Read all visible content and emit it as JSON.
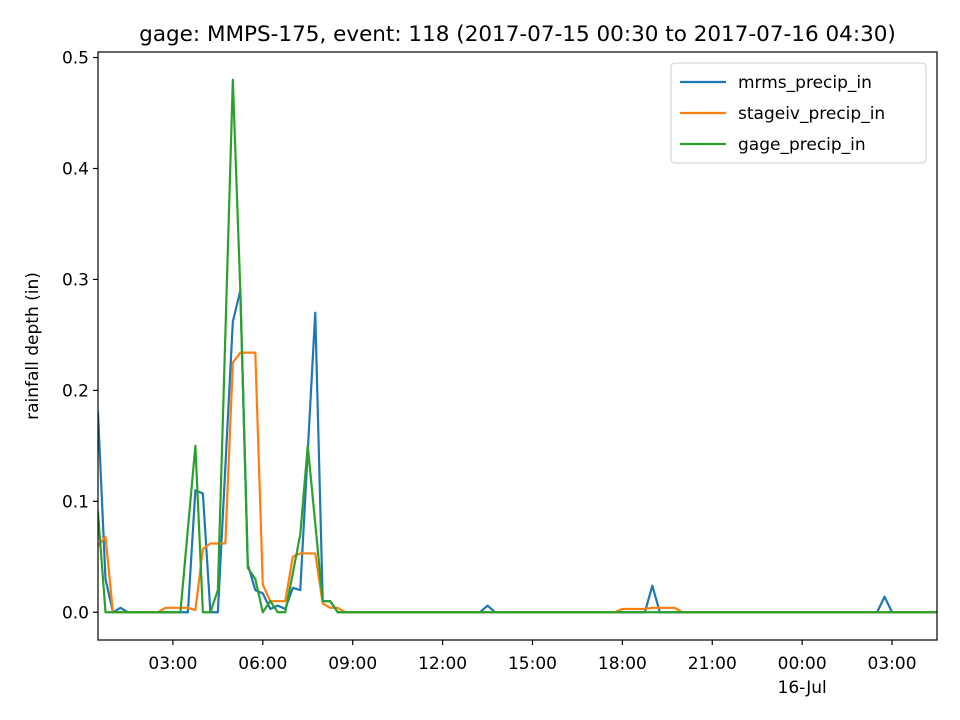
{
  "chart_data": {
    "type": "line",
    "title": "gage: MMPS-175, event: 118 (2017-07-15 00:30 to 2017-07-16 04:30)",
    "xlabel": "",
    "ylabel": "rainfall depth (in)",
    "xlim": [
      "2017-07-15 00:30",
      "2017-07-16 04:30"
    ],
    "ylim": [
      -0.025,
      0.505
    ],
    "x_ticks": [
      {
        "value": "2017-07-15 03:00",
        "label": "03:00",
        "sublabel": ""
      },
      {
        "value": "2017-07-15 06:00",
        "label": "06:00",
        "sublabel": ""
      },
      {
        "value": "2017-07-15 09:00",
        "label": "09:00",
        "sublabel": ""
      },
      {
        "value": "2017-07-15 12:00",
        "label": "12:00",
        "sublabel": ""
      },
      {
        "value": "2017-07-15 15:00",
        "label": "15:00",
        "sublabel": ""
      },
      {
        "value": "2017-07-15 18:00",
        "label": "18:00",
        "sublabel": ""
      },
      {
        "value": "2017-07-15 21:00",
        "label": "21:00",
        "sublabel": ""
      },
      {
        "value": "2017-07-16 00:00",
        "label": "00:00",
        "sublabel": "16-Jul"
      },
      {
        "value": "2017-07-16 03:00",
        "label": "03:00",
        "sublabel": ""
      }
    ],
    "y_ticks": [
      {
        "value": 0.0,
        "label": "0.0"
      },
      {
        "value": 0.1,
        "label": "0.1"
      },
      {
        "value": 0.2,
        "label": "0.2"
      },
      {
        "value": 0.3,
        "label": "0.3"
      },
      {
        "value": 0.4,
        "label": "0.4"
      },
      {
        "value": 0.5,
        "label": "0.5"
      }
    ],
    "grid": false,
    "legend_position": "top-right",
    "series": [
      {
        "name": "mrms_precip_in",
        "color": "#1f77b4",
        "points": [
          [
            "2017-07-15 00:30",
            0.18
          ],
          [
            "2017-07-15 00:45",
            0.03
          ],
          [
            "2017-07-15 01:00",
            0.0
          ],
          [
            "2017-07-15 01:15",
            0.004
          ],
          [
            "2017-07-15 01:30",
            0.0
          ],
          [
            "2017-07-15 03:30",
            0.0
          ],
          [
            "2017-07-15 03:45",
            0.11
          ],
          [
            "2017-07-15 04:00",
            0.107
          ],
          [
            "2017-07-15 04:15",
            0.0
          ],
          [
            "2017-07-15 04:30",
            0.0
          ],
          [
            "2017-07-15 05:00",
            0.262
          ],
          [
            "2017-07-15 05:15",
            0.29
          ],
          [
            "2017-07-15 05:30",
            0.043
          ],
          [
            "2017-07-15 05:45",
            0.02
          ],
          [
            "2017-07-15 06:00",
            0.017
          ],
          [
            "2017-07-15 06:15",
            0.003
          ],
          [
            "2017-07-15 06:30",
            0.006
          ],
          [
            "2017-07-15 06:45",
            0.003
          ],
          [
            "2017-07-15 07:00",
            0.022
          ],
          [
            "2017-07-15 07:15",
            0.02
          ],
          [
            "2017-07-15 07:45",
            0.27
          ],
          [
            "2017-07-15 08:00",
            0.01
          ],
          [
            "2017-07-15 08:15",
            0.01
          ],
          [
            "2017-07-15 08:30",
            0.0
          ],
          [
            "2017-07-15 13:15",
            0.0
          ],
          [
            "2017-07-15 13:30",
            0.006
          ],
          [
            "2017-07-15 13:45",
            0.0
          ],
          [
            "2017-07-15 18:45",
            0.0
          ],
          [
            "2017-07-15 19:00",
            0.024
          ],
          [
            "2017-07-15 19:15",
            0.0
          ],
          [
            "2017-07-16 02:30",
            0.0
          ],
          [
            "2017-07-16 02:45",
            0.014
          ],
          [
            "2017-07-16 03:00",
            0.0
          ],
          [
            "2017-07-16 04:30",
            0.0
          ]
        ]
      },
      {
        "name": "stageiv_precip_in",
        "color": "#ff7f0e",
        "points": [
          [
            "2017-07-15 00:30",
            0.06
          ],
          [
            "2017-07-15 00:45",
            0.068
          ],
          [
            "2017-07-15 01:00",
            0.0
          ],
          [
            "2017-07-15 02:30",
            0.0
          ],
          [
            "2017-07-15 02:45",
            0.004
          ],
          [
            "2017-07-15 03:30",
            0.004
          ],
          [
            "2017-07-15 03:45",
            0.002
          ],
          [
            "2017-07-15 04:00",
            0.057
          ],
          [
            "2017-07-15 04:15",
            0.062
          ],
          [
            "2017-07-15 04:45",
            0.062
          ],
          [
            "2017-07-15 05:00",
            0.225
          ],
          [
            "2017-07-15 05:15",
            0.234
          ],
          [
            "2017-07-15 05:45",
            0.234
          ],
          [
            "2017-07-15 06:00",
            0.025
          ],
          [
            "2017-07-15 06:15",
            0.01
          ],
          [
            "2017-07-15 06:45",
            0.01
          ],
          [
            "2017-07-15 07:00",
            0.05
          ],
          [
            "2017-07-15 07:15",
            0.053
          ],
          [
            "2017-07-15 07:45",
            0.053
          ],
          [
            "2017-07-15 08:00",
            0.008
          ],
          [
            "2017-07-15 08:15",
            0.004
          ],
          [
            "2017-07-15 08:30",
            0.004
          ],
          [
            "2017-07-15 08:45",
            0.0
          ],
          [
            "2017-07-15 17:45",
            0.0
          ],
          [
            "2017-07-15 18:00",
            0.003
          ],
          [
            "2017-07-15 18:45",
            0.003
          ],
          [
            "2017-07-15 19:00",
            0.004
          ],
          [
            "2017-07-15 19:45",
            0.004
          ],
          [
            "2017-07-15 20:00",
            0.0
          ],
          [
            "2017-07-16 04:30",
            0.0
          ]
        ]
      },
      {
        "name": "gage_precip_in",
        "color": "#2ca02c",
        "points": [
          [
            "2017-07-15 00:30",
            0.09
          ],
          [
            "2017-07-15 00:45",
            0.0
          ],
          [
            "2017-07-15 03:15",
            0.0
          ],
          [
            "2017-07-15 03:45",
            0.15
          ],
          [
            "2017-07-15 04:00",
            0.0
          ],
          [
            "2017-07-15 04:15",
            0.0
          ],
          [
            "2017-07-15 04:30",
            0.02
          ],
          [
            "2017-07-15 05:00",
            0.48
          ],
          [
            "2017-07-15 05:15",
            0.29
          ],
          [
            "2017-07-15 05:30",
            0.04
          ],
          [
            "2017-07-15 05:45",
            0.03
          ],
          [
            "2017-07-15 06:00",
            0.0
          ],
          [
            "2017-07-15 06:15",
            0.01
          ],
          [
            "2017-07-15 06:30",
            0.0
          ],
          [
            "2017-07-15 06:45",
            0.0
          ],
          [
            "2017-07-15 07:15",
            0.07
          ],
          [
            "2017-07-15 07:30",
            0.15
          ],
          [
            "2017-07-15 08:00",
            0.01
          ],
          [
            "2017-07-15 08:15",
            0.01
          ],
          [
            "2017-07-15 08:30",
            0.0
          ],
          [
            "2017-07-16 04:30",
            0.0
          ]
        ]
      }
    ]
  }
}
